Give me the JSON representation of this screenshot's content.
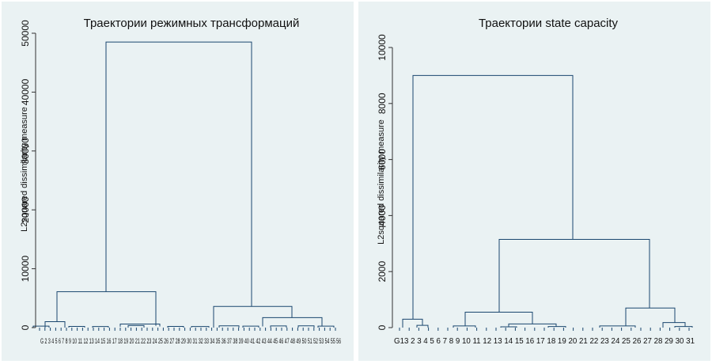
{
  "chart_data": [
    {
      "type": "dendrogram",
      "title": "Траектории режимных трансформаций",
      "ylabel": "L2squared dissimilarity measure",
      "ylim": [
        0,
        50000
      ],
      "yticks": [
        0,
        10000,
        20000,
        30000,
        40000,
        50000
      ],
      "xtick_labels": "G 2 3 4 5 6 7 8 9 10 11 12 13 14 15 16 17 18 19 20 21 22 23 24 25 26 27 28 29 30 31 32 33 34 35 36 37 38 39 40 41 42 43 44 45 46 47 48 49 50 51 52 53 54 55 56",
      "merges": [
        {
          "height": 48500,
          "left_child": "cluster A",
          "right_child": "cluster B"
        },
        {
          "height": 6100,
          "cluster": "A"
        },
        {
          "height": 3600,
          "cluster": "B"
        },
        {
          "height": 1700,
          "cluster": "B2"
        },
        {
          "height": 1000,
          "cluster": "A1"
        },
        {
          "height": 600,
          "cluster": "A2"
        }
      ],
      "grid": false,
      "line_color": "#1a476f"
    },
    {
      "type": "dendrogram",
      "title": "Траектории state capacity",
      "ylabel": "L2squared dissimilarity measure",
      "ylim": [
        0,
        10000
      ],
      "yticks": [
        0,
        2000,
        4000,
        6000,
        8000,
        10000
      ],
      "xtick_labels": "G13 2 3 4 5 6 7 8 9 10 11 12 13 14 15 16 17 18 19 20 21 22 23 24 25 26 27 28 29 30 31",
      "merges": [
        {
          "height": 9000,
          "left_child": "cluster A",
          "right_child": "cluster B"
        },
        {
          "height": 3150,
          "cluster": "B"
        },
        {
          "height": 700,
          "cluster": "B2"
        },
        {
          "height": 550,
          "cluster": "B1"
        },
        {
          "height": 300,
          "cluster": "A"
        },
        {
          "height": 180,
          "cluster": "B2a"
        },
        {
          "height": 130,
          "cluster": "B1a"
        }
      ],
      "grid": false,
      "line_color": "#1a476f"
    }
  ]
}
